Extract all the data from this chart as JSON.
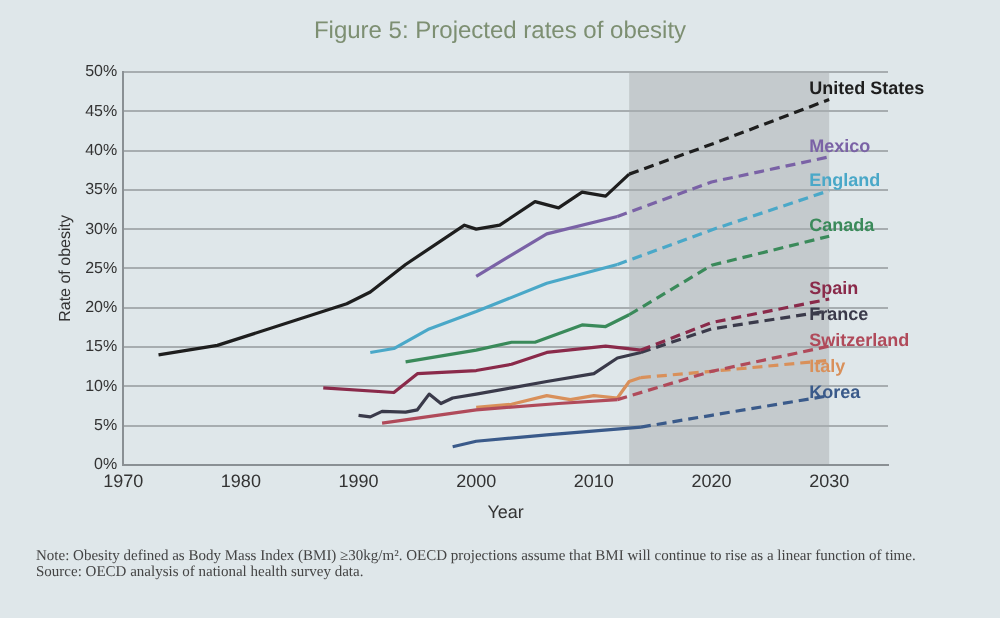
{
  "chart_data": {
    "type": "line",
    "title": "Figure 5: Projected rates of obesity",
    "xlabel": "Year",
    "ylabel": "Rate of obesity",
    "xlim": [
      1970,
      2035
    ],
    "xticks": [
      1970,
      1980,
      1990,
      2000,
      2010,
      2020,
      2030
    ],
    "ylim": [
      0,
      50
    ],
    "yticks": [
      {
        "value": 0,
        "label": "0%"
      },
      {
        "value": 5,
        "label": "5%"
      },
      {
        "value": 10,
        "label": "10%"
      },
      {
        "value": 15,
        "label": "15%"
      },
      {
        "value": 20,
        "label": "20%"
      },
      {
        "value": 25,
        "label": "25%"
      },
      {
        "value": 30,
        "label": "30%"
      },
      {
        "value": 35,
        "label": "35%"
      },
      {
        "value": 40,
        "label": "40%"
      },
      {
        "value": 45,
        "label": "45%"
      },
      {
        "value": 50,
        "label": "50%"
      }
    ],
    "grid": "y",
    "legend": false,
    "marker": "none",
    "bands": [
      {
        "axis": "x",
        "from": 2013,
        "to": 2030,
        "color": "#c4cacd"
      }
    ],
    "series": [
      {
        "color": "#1e1e1e",
        "line_style": "solid",
        "x": [
          1973,
          1978,
          1989,
          1991,
          1994,
          1999,
          2000,
          2002,
          2005,
          2007,
          2009,
          2011,
          2013
        ],
        "values": [
          14,
          15.2,
          20.5,
          22,
          25.5,
          30.5,
          30,
          30.5,
          33.5,
          32.7,
          34.7,
          34.2,
          37
        ]
      },
      {
        "name": "United States",
        "color": "#1e1e1e",
        "line_style": "dashed",
        "x": [
          2013,
          2020,
          2030
        ],
        "values": [
          37,
          40.8,
          46.5
        ]
      },
      {
        "color": "#7a62a6",
        "line_style": "solid",
        "x": [
          2000,
          2006,
          2012
        ],
        "values": [
          24,
          29.4,
          31.6
        ]
      },
      {
        "name": "Mexico",
        "color": "#7a62a6",
        "line_style": "dashed",
        "x": [
          2012,
          2020,
          2030
        ],
        "values": [
          31.6,
          36,
          39.2
        ]
      },
      {
        "color": "#4aa8c8",
        "line_style": "solid",
        "x": [
          1991,
          1993,
          1996,
          2000,
          2006,
          2012
        ],
        "values": [
          14.3,
          14.8,
          17.3,
          19.5,
          23.1,
          25.5
        ]
      },
      {
        "name": "England",
        "color": "#4aa8c8",
        "line_style": "dashed",
        "x": [
          2012,
          2020,
          2030
        ],
        "values": [
          25.5,
          29.9,
          34.9
        ]
      },
      {
        "color": "#3a8a5a",
        "line_style": "solid",
        "x": [
          1994,
          2000,
          2003,
          2005,
          2009,
          2011,
          2013
        ],
        "values": [
          13.1,
          14.6,
          15.6,
          15.6,
          17.8,
          17.6,
          19.1
        ]
      },
      {
        "name": "Canada",
        "color": "#3a8a5a",
        "line_style": "dashed",
        "x": [
          2013,
          2020,
          2030
        ],
        "values": [
          19.1,
          25.4,
          29.1
        ]
      },
      {
        "color": "#8a2a4a",
        "line_style": "solid",
        "x": [
          1987,
          1993,
          1995,
          2000,
          2003,
          2006,
          2011,
          2014
        ],
        "values": [
          9.8,
          9.2,
          11.6,
          12,
          12.8,
          14.3,
          15.1,
          14.6
        ]
      },
      {
        "name": "Spain",
        "color": "#8a2a4a",
        "line_style": "dashed",
        "x": [
          2014,
          2020,
          2030
        ],
        "values": [
          14.6,
          18.1,
          21.1
        ]
      },
      {
        "color": "#3a3a4a",
        "line_style": "solid",
        "x": [
          1990,
          1991,
          1992,
          1994,
          1995,
          1996,
          1997,
          1998,
          2000,
          2003,
          2006,
          2010,
          2012,
          2014
        ],
        "values": [
          6.3,
          6.1,
          6.8,
          6.7,
          7,
          9,
          7.8,
          8.5,
          9,
          9.8,
          10.6,
          11.6,
          13.6,
          14.3
        ]
      },
      {
        "name": "France",
        "color": "#3a3a4a",
        "line_style": "dashed",
        "x": [
          2014,
          2020,
          2030
        ],
        "values": [
          14.3,
          17.3,
          19.6
        ]
      },
      {
        "color": "#b04a5a",
        "line_style": "solid",
        "x": [
          1992,
          2000,
          2007,
          2012
        ],
        "values": [
          5.3,
          7,
          7.8,
          8.3
        ]
      },
      {
        "name": "Switzerland",
        "color": "#b04a5a",
        "line_style": "dashed",
        "x": [
          2012,
          2020,
          2030
        ],
        "values": [
          8.3,
          11.9,
          15.1
        ]
      },
      {
        "color": "#d9905a",
        "line_style": "solid",
        "x": [
          2000,
          2003,
          2006,
          2008,
          2010,
          2012,
          2013,
          2014
        ],
        "values": [
          7.3,
          7.7,
          8.8,
          8.3,
          8.8,
          8.5,
          10.6,
          11.1
        ]
      },
      {
        "name": "Italy",
        "color": "#d9905a",
        "line_style": "dashed",
        "x": [
          2014,
          2020,
          2030
        ],
        "values": [
          11.1,
          11.9,
          13.3
        ]
      },
      {
        "color": "#3a5a8a",
        "line_style": "solid",
        "x": [
          1998,
          2000,
          2006,
          2014
        ],
        "values": [
          2.3,
          3,
          3.8,
          4.8
        ]
      },
      {
        "name": "Korea",
        "color": "#3a5a8a",
        "line_style": "dashed",
        "x": [
          2014,
          2020,
          2030
        ],
        "values": [
          4.8,
          6.3,
          8.8
        ]
      }
    ],
    "annotations": [
      "Note: Obesity defined as Body Mass Index (BMI) ≥30kg/m². OECD projections assume that BMI will continue to rise as a linear function of time.",
      "Source: OECD analysis of national health survey data."
    ]
  }
}
